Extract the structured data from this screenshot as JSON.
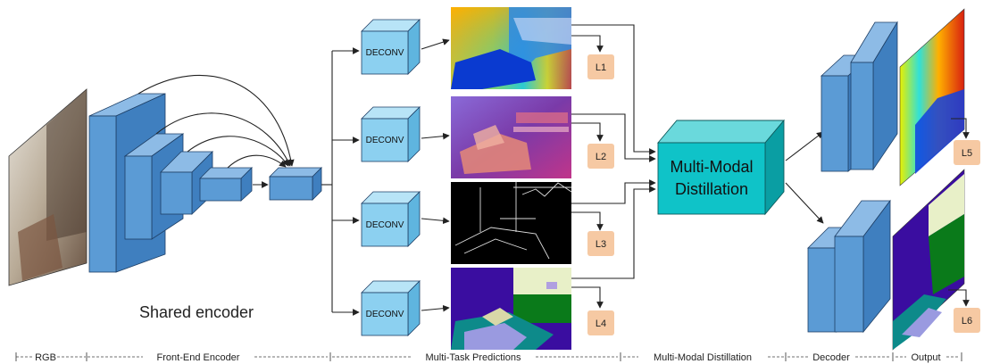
{
  "labels": {
    "deconv": "DECONV",
    "shared_encoder": "Shared encoder",
    "distillation_line1": "Multi-Modal",
    "distillation_line2": "Distillation"
  },
  "losses": [
    "L1",
    "L2",
    "L3",
    "L4",
    "L5",
    "L6"
  ],
  "stages": [
    {
      "label": "RGB"
    },
    {
      "label": "Front-End Encoder"
    },
    {
      "label": "Multi-Task Predictions"
    },
    {
      "label": "Multi-Modal Distillation"
    },
    {
      "label": "Decoder"
    },
    {
      "label": "Output"
    }
  ],
  "colors": {
    "block_front": "#5b9bd5",
    "block_top": "#8dbbe6",
    "block_side": "#3f7fbf",
    "block_stroke": "#1e3f66",
    "deconv_front": "#8cd0f0",
    "deconv_top": "#b8e4f7",
    "deconv_side": "#5fb5df",
    "distill_front": "#0fc3c8",
    "distill_top": "#6ad9dc",
    "distill_side": "#0a9ea3",
    "loss_box": "#f6c9a3",
    "arrow": "#222222"
  }
}
